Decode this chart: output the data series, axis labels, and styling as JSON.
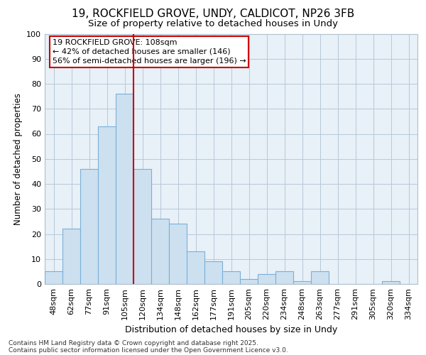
{
  "title_line1": "19, ROCKFIELD GROVE, UNDY, CALDICOT, NP26 3FB",
  "title_line2": "Size of property relative to detached houses in Undy",
  "xlabel": "Distribution of detached houses by size in Undy",
  "ylabel": "Number of detached properties",
  "categories": [
    "48sqm",
    "62sqm",
    "77sqm",
    "91sqm",
    "105sqm",
    "120sqm",
    "134sqm",
    "148sqm",
    "162sqm",
    "177sqm",
    "191sqm",
    "205sqm",
    "220sqm",
    "234sqm",
    "248sqm",
    "263sqm",
    "277sqm",
    "291sqm",
    "305sqm",
    "320sqm",
    "334sqm"
  ],
  "values": [
    5,
    22,
    46,
    63,
    76,
    46,
    26,
    24,
    13,
    9,
    5,
    2,
    4,
    5,
    1,
    5,
    0,
    0,
    0,
    1,
    0
  ],
  "bar_color": "#cce0f0",
  "bar_edgecolor": "#7ab0d8",
  "vline_x": 4.5,
  "vline_color": "#cc0000",
  "annotation_text": "19 ROCKFIELD GROVE: 108sqm\n← 42% of detached houses are smaller (146)\n56% of semi-detached houses are larger (196) →",
  "annotation_box_color": "#cc0000",
  "ylim": [
    0,
    100
  ],
  "yticks": [
    0,
    10,
    20,
    30,
    40,
    50,
    60,
    70,
    80,
    90,
    100
  ],
  "footer_line1": "Contains HM Land Registry data © Crown copyright and database right 2025.",
  "footer_line2": "Contains public sector information licensed under the Open Government Licence v3.0.",
  "bg_color": "#ffffff",
  "plot_bg_color": "#e8f0f8",
  "title_fontsize": 11,
  "subtitle_fontsize": 9.5,
  "tick_fontsize": 8,
  "ylabel_fontsize": 8.5,
  "xlabel_fontsize": 9,
  "annotation_fontsize": 8,
  "footer_fontsize": 6.5
}
